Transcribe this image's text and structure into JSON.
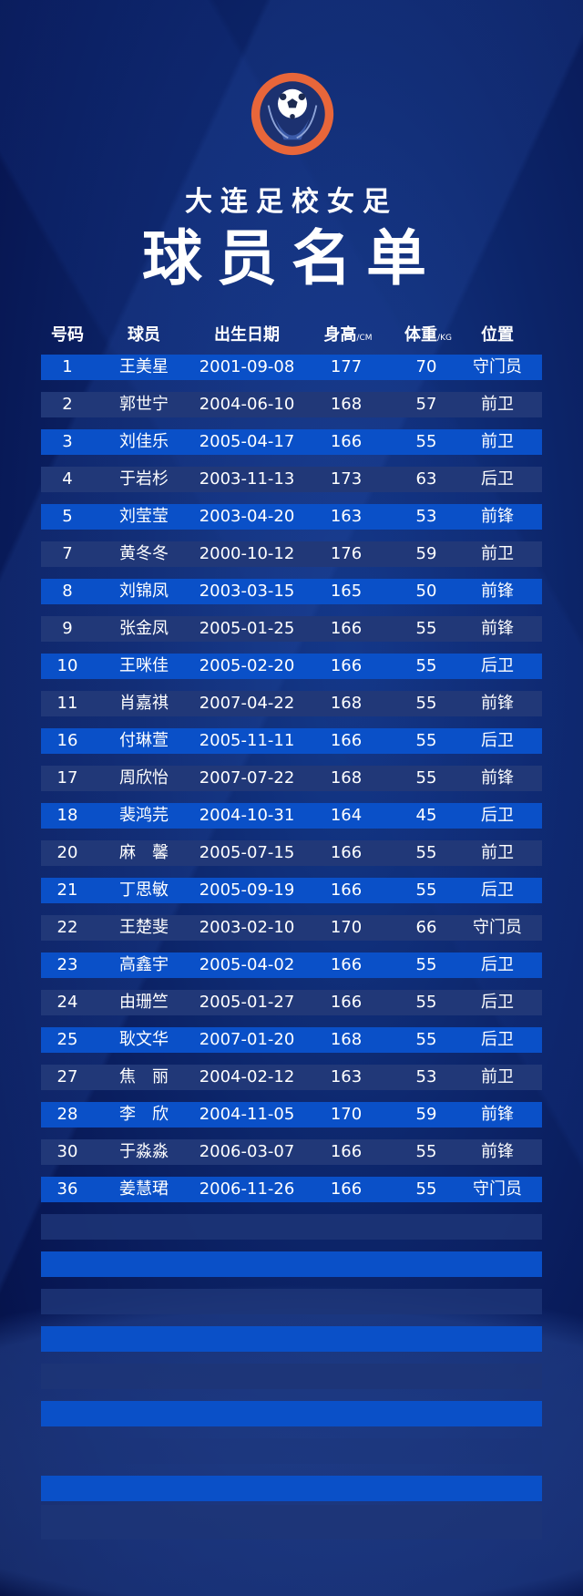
{
  "logo": {
    "text": "DALIAN FOOTBALL SCHOOL",
    "accent": "#e8663a"
  },
  "title": "大连足校女足",
  "subtitle": "球员名单",
  "headers": {
    "number": "号码",
    "player": "球员",
    "birth": "出生日期",
    "height": "身高",
    "height_unit": "/CM",
    "weight": "体重",
    "weight_unit": "/KG",
    "position": "位置"
  },
  "colors": {
    "row_bright": "#0a50c8",
    "row_dark": "#213878",
    "background": "#0c2468"
  },
  "players": [
    {
      "no": "1",
      "name": "王美星",
      "birth": "2001-09-08",
      "height": "177",
      "weight": "70",
      "pos": "守门员"
    },
    {
      "no": "2",
      "name": "郭世宁",
      "birth": "2004-06-10",
      "height": "168",
      "weight": "57",
      "pos": "前卫"
    },
    {
      "no": "3",
      "name": "刘佳乐",
      "birth": "2005-04-17",
      "height": "166",
      "weight": "55",
      "pos": "前卫"
    },
    {
      "no": "4",
      "name": "于岩杉",
      "birth": "2003-11-13",
      "height": "173",
      "weight": "63",
      "pos": "后卫"
    },
    {
      "no": "5",
      "name": "刘莹莹",
      "birth": "2003-04-20",
      "height": "163",
      "weight": "53",
      "pos": "前锋"
    },
    {
      "no": "7",
      "name": "黄冬冬",
      "birth": "2000-10-12",
      "height": "176",
      "weight": "59",
      "pos": "前卫"
    },
    {
      "no": "8",
      "name": "刘锦凤",
      "birth": "2003-03-15",
      "height": "165",
      "weight": "50",
      "pos": "前锋"
    },
    {
      "no": "9",
      "name": "张金凤",
      "birth": "2005-01-25",
      "height": "166",
      "weight": "55",
      "pos": "前锋"
    },
    {
      "no": "10",
      "name": "王咪佳",
      "birth": "2005-02-20",
      "height": "166",
      "weight": "55",
      "pos": "后卫"
    },
    {
      "no": "11",
      "name": "肖嘉祺",
      "birth": "2007-04-22",
      "height": "168",
      "weight": "55",
      "pos": "前锋"
    },
    {
      "no": "16",
      "name": "付琳萱",
      "birth": "2005-11-11",
      "height": "166",
      "weight": "55",
      "pos": "后卫"
    },
    {
      "no": "17",
      "name": "周欣怡",
      "birth": "2007-07-22",
      "height": "168",
      "weight": "55",
      "pos": "前锋"
    },
    {
      "no": "18",
      "name": "裴鸿芫",
      "birth": "2004-10-31",
      "height": "164",
      "weight": "45",
      "pos": "后卫"
    },
    {
      "no": "20",
      "name": "麻　馨",
      "birth": "2005-07-15",
      "height": "166",
      "weight": "55",
      "pos": "前卫"
    },
    {
      "no": "21",
      "name": "丁思敏",
      "birth": "2005-09-19",
      "height": "166",
      "weight": "55",
      "pos": "后卫"
    },
    {
      "no": "22",
      "name": "王楚斐",
      "birth": "2003-02-10",
      "height": "170",
      "weight": "66",
      "pos": "守门员"
    },
    {
      "no": "23",
      "name": "高鑫宇",
      "birth": "2005-04-02",
      "height": "166",
      "weight": "55",
      "pos": "后卫"
    },
    {
      "no": "24",
      "name": "由珊竺",
      "birth": "2005-01-27",
      "height": "166",
      "weight": "55",
      "pos": "后卫"
    },
    {
      "no": "25",
      "name": "耿文华",
      "birth": "2007-01-20",
      "height": "168",
      "weight": "55",
      "pos": "后卫"
    },
    {
      "no": "27",
      "name": "焦　丽",
      "birth": "2004-02-12",
      "height": "163",
      "weight": "53",
      "pos": "前卫"
    },
    {
      "no": "28",
      "name": "李　欣",
      "birth": "2004-11-05",
      "height": "170",
      "weight": "59",
      "pos": "前锋"
    },
    {
      "no": "30",
      "name": "于淼淼",
      "birth": "2006-03-07",
      "height": "166",
      "weight": "55",
      "pos": "前锋"
    },
    {
      "no": "36",
      "name": "姜慧珺",
      "birth": "2006-11-26",
      "height": "166",
      "weight": "55",
      "pos": "守门员"
    }
  ]
}
